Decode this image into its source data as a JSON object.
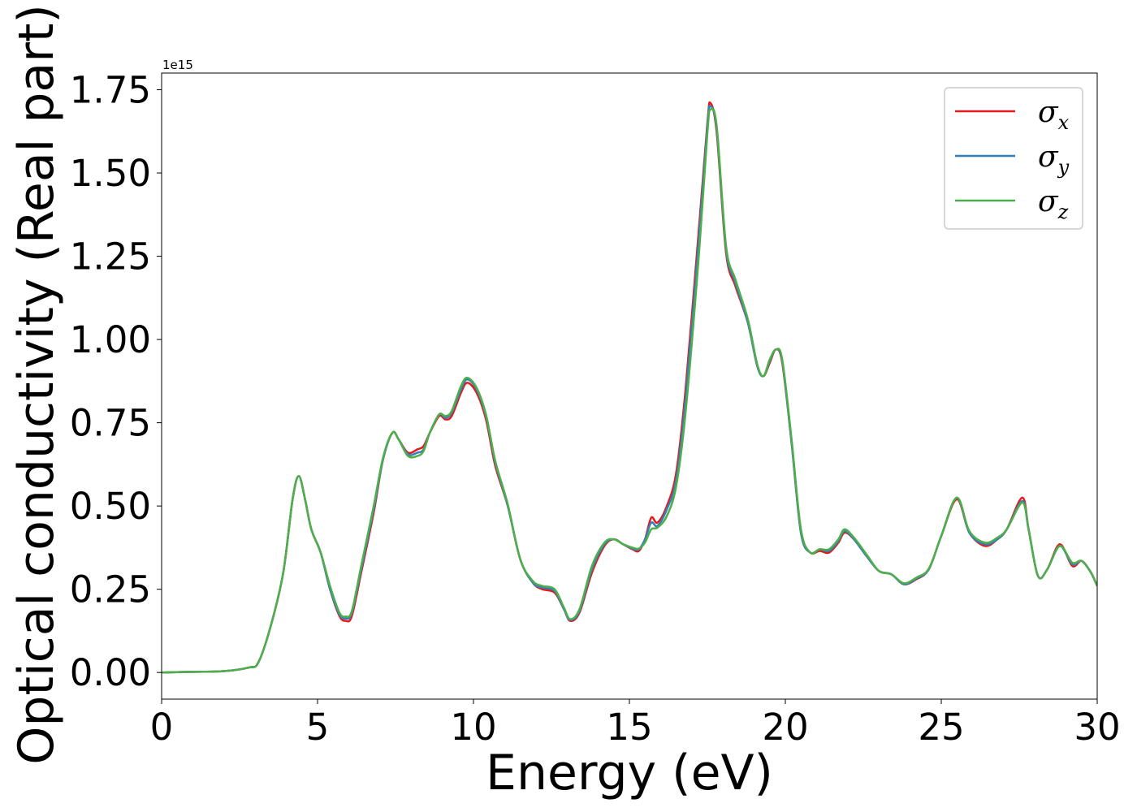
{
  "chart_data": {
    "type": "line",
    "xlabel": "Energy (eV)",
    "ylabel": "Optical conductivity (Real part)",
    "y_offset_text": "1e15",
    "xlim": [
      0,
      30
    ],
    "ylim": [
      -0.08,
      1.8
    ],
    "xticks": [
      0,
      5,
      10,
      15,
      20,
      25,
      30
    ],
    "xtick_labels": [
      "0",
      "5",
      "10",
      "15",
      "20",
      "25",
      "30"
    ],
    "yticks": [
      0.0,
      0.25,
      0.5,
      0.75,
      1.0,
      1.25,
      1.5,
      1.75
    ],
    "ytick_labels": [
      "0.00",
      "0.25",
      "0.50",
      "0.75",
      "1.00",
      "1.25",
      "1.50",
      "1.75"
    ],
    "grid": false,
    "legend": {
      "position": "top-right"
    },
    "series": [
      {
        "name": "σx",
        "symbol": "σ",
        "subscript": "x",
        "color": "#e41a1c",
        "points": [
          [
            0,
            0.0
          ],
          [
            1,
            0.002
          ],
          [
            2,
            0.004
          ],
          [
            2.8,
            0.015
          ],
          [
            3.1,
            0.03
          ],
          [
            3.5,
            0.14
          ],
          [
            3.9,
            0.3
          ],
          [
            4.2,
            0.52
          ],
          [
            4.4,
            0.59
          ],
          [
            4.6,
            0.52
          ],
          [
            4.8,
            0.43
          ],
          [
            5.1,
            0.36
          ],
          [
            5.4,
            0.25
          ],
          [
            5.7,
            0.17
          ],
          [
            5.9,
            0.155
          ],
          [
            6.1,
            0.17
          ],
          [
            6.4,
            0.3
          ],
          [
            6.8,
            0.48
          ],
          [
            7.1,
            0.64
          ],
          [
            7.4,
            0.72
          ],
          [
            7.6,
            0.7
          ],
          [
            7.9,
            0.66
          ],
          [
            8.2,
            0.67
          ],
          [
            8.4,
            0.68
          ],
          [
            8.6,
            0.72
          ],
          [
            8.9,
            0.77
          ],
          [
            9.1,
            0.76
          ],
          [
            9.3,
            0.77
          ],
          [
            9.6,
            0.84
          ],
          [
            9.8,
            0.87
          ],
          [
            10.1,
            0.84
          ],
          [
            10.4,
            0.76
          ],
          [
            10.7,
            0.62
          ],
          [
            11.1,
            0.5
          ],
          [
            11.5,
            0.34
          ],
          [
            11.9,
            0.27
          ],
          [
            12.2,
            0.25
          ],
          [
            12.6,
            0.24
          ],
          [
            12.9,
            0.19
          ],
          [
            13.1,
            0.155
          ],
          [
            13.4,
            0.18
          ],
          [
            13.8,
            0.3
          ],
          [
            14.2,
            0.38
          ],
          [
            14.5,
            0.4
          ],
          [
            14.8,
            0.385
          ],
          [
            15.1,
            0.37
          ],
          [
            15.3,
            0.365
          ],
          [
            15.5,
            0.4
          ],
          [
            15.7,
            0.465
          ],
          [
            15.9,
            0.45
          ],
          [
            16.2,
            0.5
          ],
          [
            16.5,
            0.6
          ],
          [
            16.8,
            0.85
          ],
          [
            17.2,
            1.3
          ],
          [
            17.5,
            1.65
          ],
          [
            17.6,
            1.71
          ],
          [
            17.8,
            1.62
          ],
          [
            18.1,
            1.26
          ],
          [
            18.4,
            1.16
          ],
          [
            18.8,
            1.05
          ],
          [
            19.1,
            0.92
          ],
          [
            19.3,
            0.89
          ],
          [
            19.5,
            0.93
          ],
          [
            19.7,
            0.97
          ],
          [
            19.9,
            0.93
          ],
          [
            20.2,
            0.69
          ],
          [
            20.5,
            0.42
          ],
          [
            20.8,
            0.36
          ],
          [
            21.1,
            0.365
          ],
          [
            21.4,
            0.36
          ],
          [
            21.7,
            0.39
          ],
          [
            21.9,
            0.42
          ],
          [
            22.2,
            0.4
          ],
          [
            22.6,
            0.35
          ],
          [
            23.0,
            0.305
          ],
          [
            23.4,
            0.295
          ],
          [
            23.8,
            0.265
          ],
          [
            24.2,
            0.28
          ],
          [
            24.6,
            0.31
          ],
          [
            25.0,
            0.41
          ],
          [
            25.5,
            0.52
          ],
          [
            25.9,
            0.42
          ],
          [
            26.4,
            0.38
          ],
          [
            26.8,
            0.4
          ],
          [
            27.1,
            0.43
          ],
          [
            27.6,
            0.525
          ],
          [
            27.8,
            0.43
          ],
          [
            28.1,
            0.29
          ],
          [
            28.4,
            0.31
          ],
          [
            28.8,
            0.385
          ],
          [
            29.2,
            0.32
          ],
          [
            29.5,
            0.335
          ],
          [
            29.8,
            0.3
          ],
          [
            30.0,
            0.26
          ]
        ]
      },
      {
        "name": "σy",
        "symbol": "σ",
        "subscript": "y",
        "color": "#377eb8",
        "points": [
          [
            0,
            0.0
          ],
          [
            1,
            0.002
          ],
          [
            2,
            0.004
          ],
          [
            2.8,
            0.015
          ],
          [
            3.1,
            0.03
          ],
          [
            3.5,
            0.14
          ],
          [
            3.9,
            0.3
          ],
          [
            4.2,
            0.52
          ],
          [
            4.4,
            0.59
          ],
          [
            4.6,
            0.52
          ],
          [
            4.8,
            0.43
          ],
          [
            5.1,
            0.36
          ],
          [
            5.4,
            0.25
          ],
          [
            5.7,
            0.175
          ],
          [
            5.9,
            0.162
          ],
          [
            6.1,
            0.18
          ],
          [
            6.4,
            0.31
          ],
          [
            6.8,
            0.49
          ],
          [
            7.1,
            0.64
          ],
          [
            7.4,
            0.72
          ],
          [
            7.6,
            0.7
          ],
          [
            7.9,
            0.655
          ],
          [
            8.2,
            0.66
          ],
          [
            8.4,
            0.67
          ],
          [
            8.6,
            0.72
          ],
          [
            8.9,
            0.775
          ],
          [
            9.1,
            0.765
          ],
          [
            9.3,
            0.78
          ],
          [
            9.6,
            0.85
          ],
          [
            9.8,
            0.88
          ],
          [
            10.1,
            0.85
          ],
          [
            10.4,
            0.77
          ],
          [
            10.7,
            0.63
          ],
          [
            11.1,
            0.5
          ],
          [
            11.5,
            0.34
          ],
          [
            11.9,
            0.27
          ],
          [
            12.2,
            0.255
          ],
          [
            12.6,
            0.245
          ],
          [
            12.9,
            0.19
          ],
          [
            13.1,
            0.158
          ],
          [
            13.4,
            0.185
          ],
          [
            13.8,
            0.31
          ],
          [
            14.2,
            0.385
          ],
          [
            14.5,
            0.4
          ],
          [
            14.8,
            0.385
          ],
          [
            15.1,
            0.372
          ],
          [
            15.3,
            0.37
          ],
          [
            15.5,
            0.4
          ],
          [
            15.7,
            0.45
          ],
          [
            15.9,
            0.44
          ],
          [
            16.2,
            0.49
          ],
          [
            16.5,
            0.58
          ],
          [
            16.8,
            0.82
          ],
          [
            17.2,
            1.27
          ],
          [
            17.5,
            1.64
          ],
          [
            17.6,
            1.7
          ],
          [
            17.8,
            1.63
          ],
          [
            18.1,
            1.27
          ],
          [
            18.4,
            1.17
          ],
          [
            18.8,
            1.05
          ],
          [
            19.1,
            0.92
          ],
          [
            19.3,
            0.89
          ],
          [
            19.5,
            0.935
          ],
          [
            19.7,
            0.97
          ],
          [
            19.9,
            0.935
          ],
          [
            20.2,
            0.69
          ],
          [
            20.5,
            0.42
          ],
          [
            20.8,
            0.36
          ],
          [
            21.1,
            0.37
          ],
          [
            21.4,
            0.365
          ],
          [
            21.7,
            0.395
          ],
          [
            21.9,
            0.425
          ],
          [
            22.2,
            0.4
          ],
          [
            22.6,
            0.35
          ],
          [
            23.0,
            0.305
          ],
          [
            23.4,
            0.295
          ],
          [
            23.8,
            0.265
          ],
          [
            24.2,
            0.282
          ],
          [
            24.6,
            0.31
          ],
          [
            25.0,
            0.41
          ],
          [
            25.5,
            0.525
          ],
          [
            25.9,
            0.42
          ],
          [
            26.4,
            0.385
          ],
          [
            26.8,
            0.4
          ],
          [
            27.1,
            0.43
          ],
          [
            27.6,
            0.515
          ],
          [
            27.8,
            0.43
          ],
          [
            28.1,
            0.29
          ],
          [
            28.4,
            0.31
          ],
          [
            28.8,
            0.38
          ],
          [
            29.2,
            0.325
          ],
          [
            29.5,
            0.335
          ],
          [
            29.8,
            0.3
          ],
          [
            30.0,
            0.26
          ]
        ]
      },
      {
        "name": "σz",
        "symbol": "σ",
        "subscript": "z",
        "color": "#4daf4a",
        "points": [
          [
            0,
            0.0
          ],
          [
            1,
            0.002
          ],
          [
            2,
            0.004
          ],
          [
            2.8,
            0.015
          ],
          [
            3.1,
            0.03
          ],
          [
            3.5,
            0.14
          ],
          [
            3.9,
            0.3
          ],
          [
            4.2,
            0.52
          ],
          [
            4.4,
            0.59
          ],
          [
            4.6,
            0.52
          ],
          [
            4.8,
            0.43
          ],
          [
            5.1,
            0.36
          ],
          [
            5.4,
            0.26
          ],
          [
            5.7,
            0.18
          ],
          [
            5.9,
            0.168
          ],
          [
            6.1,
            0.185
          ],
          [
            6.4,
            0.32
          ],
          [
            6.8,
            0.5
          ],
          [
            7.1,
            0.645
          ],
          [
            7.4,
            0.72
          ],
          [
            7.6,
            0.7
          ],
          [
            7.9,
            0.65
          ],
          [
            8.2,
            0.65
          ],
          [
            8.4,
            0.665
          ],
          [
            8.6,
            0.72
          ],
          [
            8.9,
            0.775
          ],
          [
            9.1,
            0.77
          ],
          [
            9.3,
            0.785
          ],
          [
            9.6,
            0.86
          ],
          [
            9.8,
            0.885
          ],
          [
            10.1,
            0.855
          ],
          [
            10.4,
            0.775
          ],
          [
            10.7,
            0.635
          ],
          [
            11.1,
            0.505
          ],
          [
            11.5,
            0.34
          ],
          [
            11.9,
            0.275
          ],
          [
            12.2,
            0.26
          ],
          [
            12.6,
            0.25
          ],
          [
            12.9,
            0.195
          ],
          [
            13.1,
            0.16
          ],
          [
            13.4,
            0.19
          ],
          [
            13.8,
            0.32
          ],
          [
            14.2,
            0.39
          ],
          [
            14.5,
            0.4
          ],
          [
            14.8,
            0.385
          ],
          [
            15.1,
            0.375
          ],
          [
            15.3,
            0.372
          ],
          [
            15.5,
            0.39
          ],
          [
            15.7,
            0.43
          ],
          [
            15.9,
            0.435
          ],
          [
            16.2,
            0.47
          ],
          [
            16.5,
            0.56
          ],
          [
            16.8,
            0.78
          ],
          [
            17.2,
            1.22
          ],
          [
            17.5,
            1.62
          ],
          [
            17.6,
            1.69
          ],
          [
            17.8,
            1.64
          ],
          [
            18.1,
            1.28
          ],
          [
            18.4,
            1.18
          ],
          [
            18.8,
            1.06
          ],
          [
            19.1,
            0.925
          ],
          [
            19.3,
            0.89
          ],
          [
            19.5,
            0.94
          ],
          [
            19.7,
            0.97
          ],
          [
            19.9,
            0.94
          ],
          [
            20.2,
            0.7
          ],
          [
            20.5,
            0.43
          ],
          [
            20.8,
            0.36
          ],
          [
            21.1,
            0.37
          ],
          [
            21.4,
            0.37
          ],
          [
            21.7,
            0.4
          ],
          [
            21.9,
            0.43
          ],
          [
            22.2,
            0.405
          ],
          [
            22.6,
            0.355
          ],
          [
            23.0,
            0.305
          ],
          [
            23.4,
            0.295
          ],
          [
            23.8,
            0.268
          ],
          [
            24.2,
            0.285
          ],
          [
            24.6,
            0.312
          ],
          [
            25.0,
            0.41
          ],
          [
            25.5,
            0.525
          ],
          [
            25.9,
            0.425
          ],
          [
            26.4,
            0.39
          ],
          [
            26.8,
            0.405
          ],
          [
            27.1,
            0.43
          ],
          [
            27.6,
            0.51
          ],
          [
            27.8,
            0.43
          ],
          [
            28.1,
            0.29
          ],
          [
            28.4,
            0.31
          ],
          [
            28.8,
            0.38
          ],
          [
            29.2,
            0.33
          ],
          [
            29.5,
            0.335
          ],
          [
            29.8,
            0.3
          ],
          [
            30.0,
            0.26
          ]
        ]
      }
    ]
  }
}
